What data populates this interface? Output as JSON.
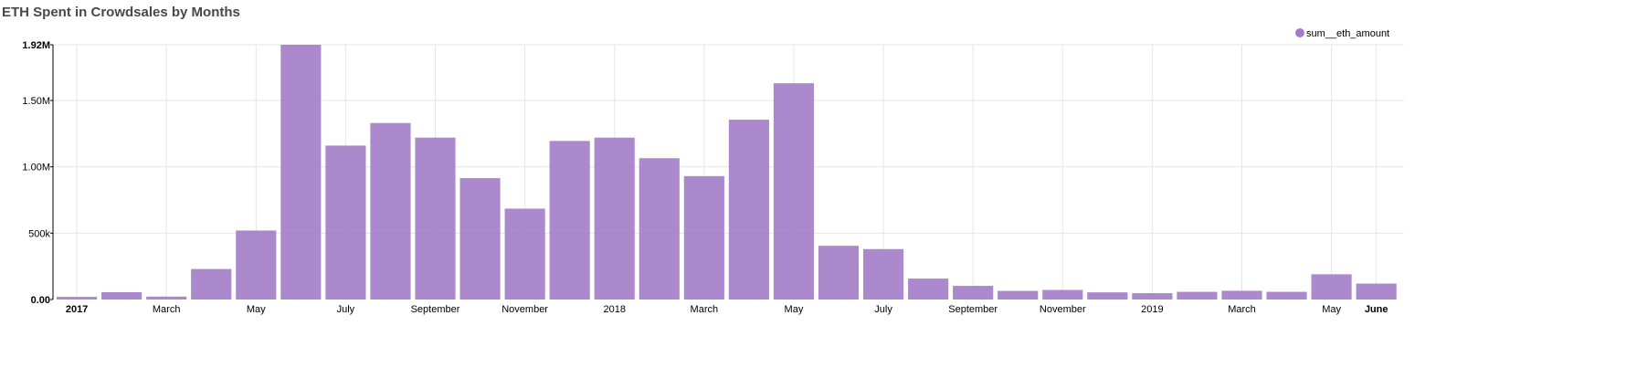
{
  "title": "ETH Spent in Crowdsales by Months",
  "chart_data": {
    "type": "bar",
    "title": "ETH Spent in Crowdsales by Months",
    "xlabel": "",
    "ylabel": "",
    "color": "#a37cc8",
    "legend": {
      "placement": "top-right"
    },
    "grid": true,
    "ylim": [
      0,
      1920000
    ],
    "y_ticks": [
      {
        "value": 0,
        "label": "0.00"
      },
      {
        "value": 500000,
        "label": "500k"
      },
      {
        "value": 1000000,
        "label": "1.00M"
      },
      {
        "value": 1500000,
        "label": "1.50M"
      },
      {
        "value": 1920000,
        "label": "1.92M"
      }
    ],
    "categories": [
      "2017-01",
      "2017-02",
      "2017-03",
      "2017-04",
      "2017-05",
      "2017-06",
      "2017-07",
      "2017-08",
      "2017-09",
      "2017-10",
      "2017-11",
      "2017-12",
      "2018-01",
      "2018-02",
      "2018-03",
      "2018-04",
      "2018-05",
      "2018-06",
      "2018-07",
      "2018-08",
      "2018-09",
      "2018-10",
      "2018-11",
      "2018-12",
      "2019-01",
      "2019-02",
      "2019-03",
      "2019-04",
      "2019-05",
      "2019-06"
    ],
    "x_ticks": [
      {
        "index": 0,
        "label": "2017",
        "bold": true
      },
      {
        "index": 2,
        "label": "March",
        "bold": false
      },
      {
        "index": 4,
        "label": "May",
        "bold": false
      },
      {
        "index": 6,
        "label": "July",
        "bold": false
      },
      {
        "index": 8,
        "label": "September",
        "bold": false
      },
      {
        "index": 10,
        "label": "November",
        "bold": false
      },
      {
        "index": 12,
        "label": "2018",
        "bold": false
      },
      {
        "index": 14,
        "label": "March",
        "bold": false
      },
      {
        "index": 16,
        "label": "May",
        "bold": false
      },
      {
        "index": 18,
        "label": "July",
        "bold": false
      },
      {
        "index": 20,
        "label": "September",
        "bold": false
      },
      {
        "index": 22,
        "label": "November",
        "bold": false
      },
      {
        "index": 24,
        "label": "2019",
        "bold": false
      },
      {
        "index": 26,
        "label": "March",
        "bold": false
      },
      {
        "index": 28,
        "label": "May",
        "bold": false
      },
      {
        "index": 29,
        "label": "June",
        "bold": true
      }
    ],
    "series": [
      {
        "name": "sum__eth_amount",
        "values": [
          20000,
          55000,
          22000,
          230000,
          520000,
          1920000,
          1160000,
          1330000,
          1220000,
          915000,
          685000,
          1195000,
          1220000,
          1065000,
          930000,
          1355000,
          1630000,
          405000,
          380000,
          158000,
          103000,
          65000,
          72000,
          54000,
          48000,
          58000,
          66000,
          58000,
          190000,
          120000
        ]
      }
    ]
  }
}
